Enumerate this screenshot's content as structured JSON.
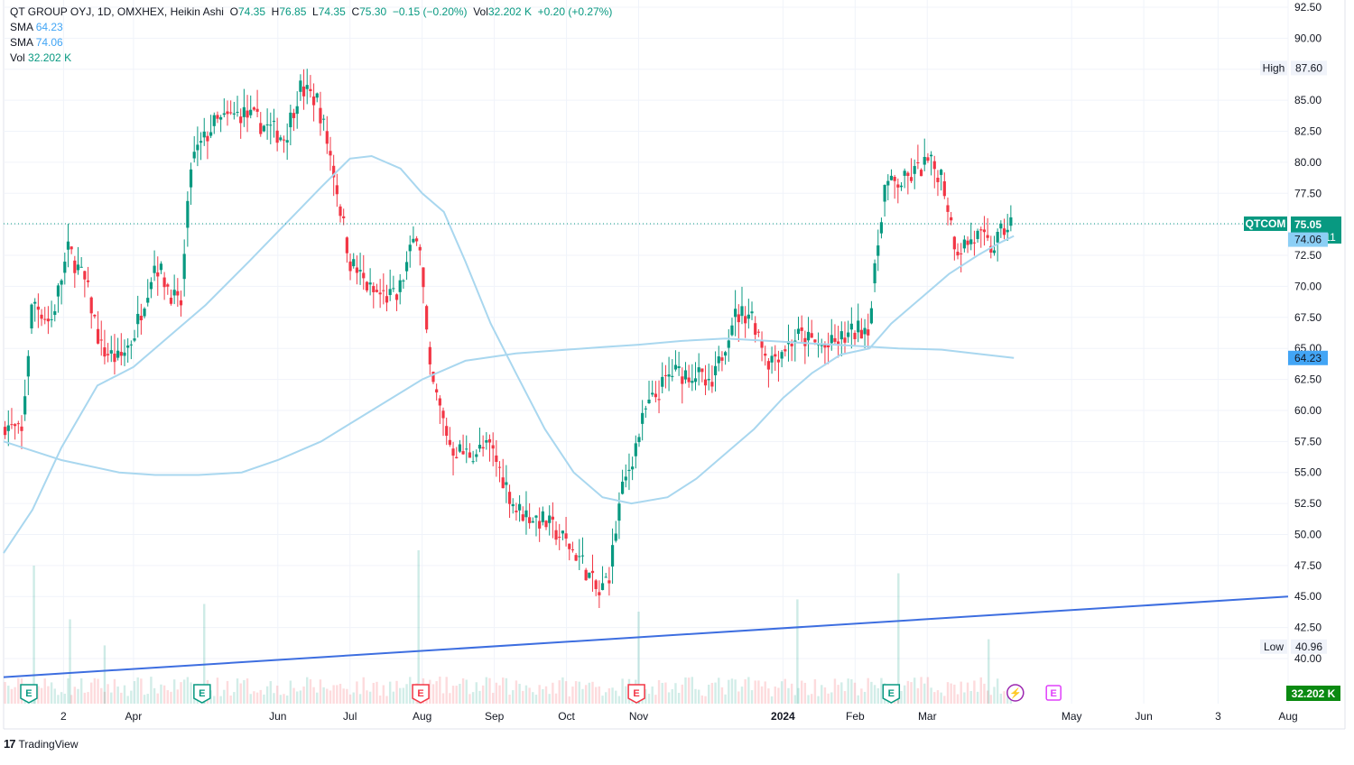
{
  "legend": {
    "symbol_line": "QT GROUP OYJ, 1D, OMXHEX, Heikin Ashi",
    "open_label": "O",
    "open": "74.35",
    "high_label": "H",
    "high": "76.85",
    "low_label": "L",
    "low": "74.35",
    "close_label": "C",
    "close": "75.30",
    "change": "−0.15 (−0.20%)",
    "vol_label": "Vol",
    "vol_value": "32.202 K",
    "vol_change": "+0.20 (+0.27%)",
    "sma1_label": "SMA",
    "sma1_value": "64.23",
    "sma2_label": "SMA",
    "sma2_value": "74.06",
    "vol_ind_label": "Vol",
    "vol_ind_value": "32.202 K"
  },
  "badges": {
    "high_label": "High",
    "high_value": "87.60",
    "low_label": "Low",
    "low_value": "40.96",
    "symbol_tag": "QTCOM",
    "last_price": "75.05",
    "countdown": "02:29:11",
    "sma_fast": "74.06",
    "sma_slow": "64.23",
    "volume": "32.202 K"
  },
  "branding": {
    "logo": "17",
    "name": "TradingView"
  },
  "colors": {
    "up": "#089981",
    "down": "#f23645",
    "sma": "#a9d7ef",
    "trend": "#3d6ee0",
    "tag_bg": "#089981",
    "sma_badge": "#42a5f5"
  },
  "chart_data": {
    "type": "candlestick",
    "style": "Heikin Ashi",
    "interval": "1D",
    "exchange": "OMXHEX",
    "ylim": [
      38,
      92.5
    ],
    "y_ticks": [
      "92.50",
      "90.00",
      "87.50",
      "85.00",
      "82.50",
      "80.00",
      "77.50",
      "75.00",
      "72.50",
      "70.00",
      "67.50",
      "65.00",
      "62.50",
      "60.00",
      "57.50",
      "55.00",
      "52.50",
      "50.00",
      "47.50",
      "45.00",
      "42.50",
      "40.00"
    ],
    "x_ticks": [
      "2",
      "Apr",
      "Jun",
      "Jul",
      "Aug",
      "Sep",
      "Oct",
      "Nov",
      "2024",
      "Feb",
      "Mar",
      "May",
      "Jun",
      "3",
      "Aug"
    ],
    "x_tick_months": [
      2.03,
      3.0,
      5.0,
      6.0,
      7.0,
      8.0,
      9.0,
      10.0,
      12.0,
      13.0,
      14.0,
      16.0,
      17.0,
      18.03,
      19.0
    ],
    "x_range_months": [
      1.2,
      19.0
    ],
    "price_path": [
      [
        1.2,
        59
      ],
      [
        1.45,
        58
      ],
      [
        1.6,
        69
      ],
      [
        1.85,
        67
      ],
      [
        2.1,
        73
      ],
      [
        2.35,
        70
      ],
      [
        2.55,
        65
      ],
      [
        2.8,
        64
      ],
      [
        3.0,
        66
      ],
      [
        3.3,
        72
      ],
      [
        3.65,
        68
      ],
      [
        3.8,
        80
      ],
      [
        4.1,
        83
      ],
      [
        4.5,
        84
      ],
      [
        4.8,
        83
      ],
      [
        5.1,
        82
      ],
      [
        5.3,
        86
      ],
      [
        5.55,
        85
      ],
      [
        5.75,
        80
      ],
      [
        6.0,
        72
      ],
      [
        6.3,
        69.5
      ],
      [
        6.65,
        69
      ],
      [
        6.95,
        75
      ],
      [
        7.1,
        63
      ],
      [
        7.4,
        57
      ],
      [
        7.6,
        56.5
      ],
      [
        7.95,
        57
      ],
      [
        8.3,
        52
      ],
      [
        8.7,
        51
      ],
      [
        8.9,
        50
      ],
      [
        9.2,
        48
      ],
      [
        9.45,
        45
      ],
      [
        9.6,
        47
      ],
      [
        9.75,
        53
      ],
      [
        10.1,
        60
      ],
      [
        10.45,
        63
      ],
      [
        10.8,
        63
      ],
      [
        11.0,
        61.5
      ],
      [
        11.3,
        67.5
      ],
      [
        11.55,
        68
      ],
      [
        11.8,
        64
      ],
      [
        12.2,
        66
      ],
      [
        12.6,
        65
      ],
      [
        12.9,
        66
      ],
      [
        13.2,
        67
      ],
      [
        13.4,
        78
      ],
      [
        13.7,
        78.5
      ],
      [
        14.0,
        80
      ],
      [
        14.2,
        79
      ],
      [
        14.4,
        73
      ],
      [
        14.7,
        74
      ],
      [
        14.9,
        73
      ],
      [
        15.05,
        74.5
      ],
      [
        15.2,
        75.3
      ]
    ],
    "series": [
      {
        "name": "SMA",
        "last_value": 64.23,
        "points": [
          [
            1.2,
            57.5
          ],
          [
            2.0,
            56
          ],
          [
            2.8,
            55
          ],
          [
            3.3,
            54.8
          ],
          [
            3.9,
            54.8
          ],
          [
            4.5,
            55
          ],
          [
            5.0,
            56
          ],
          [
            5.6,
            57.5
          ],
          [
            6.3,
            60
          ],
          [
            7.0,
            62.5
          ],
          [
            7.6,
            64
          ],
          [
            8.3,
            64.6
          ],
          [
            9.0,
            64.9
          ],
          [
            9.5,
            65.1
          ],
          [
            10.0,
            65.3
          ],
          [
            10.6,
            65.6
          ],
          [
            11.2,
            65.8
          ],
          [
            11.8,
            65.6
          ],
          [
            12.4,
            65.4
          ],
          [
            13.0,
            65.2
          ],
          [
            13.6,
            65.0
          ],
          [
            14.2,
            64.9
          ],
          [
            14.8,
            64.5
          ],
          [
            15.2,
            64.23
          ]
        ]
      },
      {
        "name": "SMA",
        "last_value": 74.06,
        "points": [
          [
            1.2,
            48.5
          ],
          [
            1.6,
            52
          ],
          [
            2.0,
            57
          ],
          [
            2.5,
            62
          ],
          [
            3.0,
            63.5
          ],
          [
            3.5,
            66
          ],
          [
            4.0,
            68.5
          ],
          [
            4.6,
            72
          ],
          [
            5.1,
            75
          ],
          [
            5.6,
            78
          ],
          [
            6.0,
            80.3
          ],
          [
            6.3,
            80.5
          ],
          [
            6.7,
            79.5
          ],
          [
            7.0,
            77.5
          ],
          [
            7.3,
            76
          ],
          [
            7.6,
            72
          ],
          [
            7.95,
            67
          ],
          [
            8.3,
            63
          ],
          [
            8.7,
            58.5
          ],
          [
            9.1,
            55
          ],
          [
            9.5,
            53
          ],
          [
            9.9,
            52.5
          ],
          [
            10.4,
            53
          ],
          [
            10.8,
            54.5
          ],
          [
            11.2,
            56.5
          ],
          [
            11.6,
            58.5
          ],
          [
            12.0,
            61
          ],
          [
            12.4,
            63
          ],
          [
            12.8,
            64.5
          ],
          [
            13.2,
            65
          ],
          [
            13.5,
            67
          ],
          [
            13.9,
            69
          ],
          [
            14.3,
            71
          ],
          [
            14.7,
            72.5
          ],
          [
            15.0,
            73.5
          ],
          [
            15.2,
            74.06
          ]
        ]
      },
      {
        "name": "Trend line",
        "points": [
          [
            1.2,
            38.5
          ],
          [
            19.0,
            45.0
          ]
        ]
      }
    ],
    "volume": {
      "last": 32.202,
      "unit": "K",
      "spikes_months": [
        1.62,
        2.12,
        2.6,
        3.98,
        6.95,
        10.0,
        12.2,
        13.6,
        14.85
      ],
      "spike_heights": [
        0.9,
        0.55,
        0.38,
        0.65,
        1.0,
        0.6,
        0.68,
        0.85,
        0.42
      ]
    },
    "events": [
      {
        "label": "E",
        "month": 1.55,
        "kind": "earnings-up"
      },
      {
        "label": "E",
        "month": 3.95,
        "kind": "earnings-up"
      },
      {
        "label": "E",
        "month": 6.98,
        "kind": "earnings-down"
      },
      {
        "label": "E",
        "month": 9.97,
        "kind": "earnings-down"
      },
      {
        "label": "E",
        "month": 13.5,
        "kind": "earnings-up"
      },
      {
        "label": "⚡",
        "month": 15.22,
        "kind": "split"
      },
      {
        "label": "E",
        "month": 15.75,
        "kind": "earnings-future"
      }
    ],
    "grid": true,
    "legend_position": "top-left"
  }
}
